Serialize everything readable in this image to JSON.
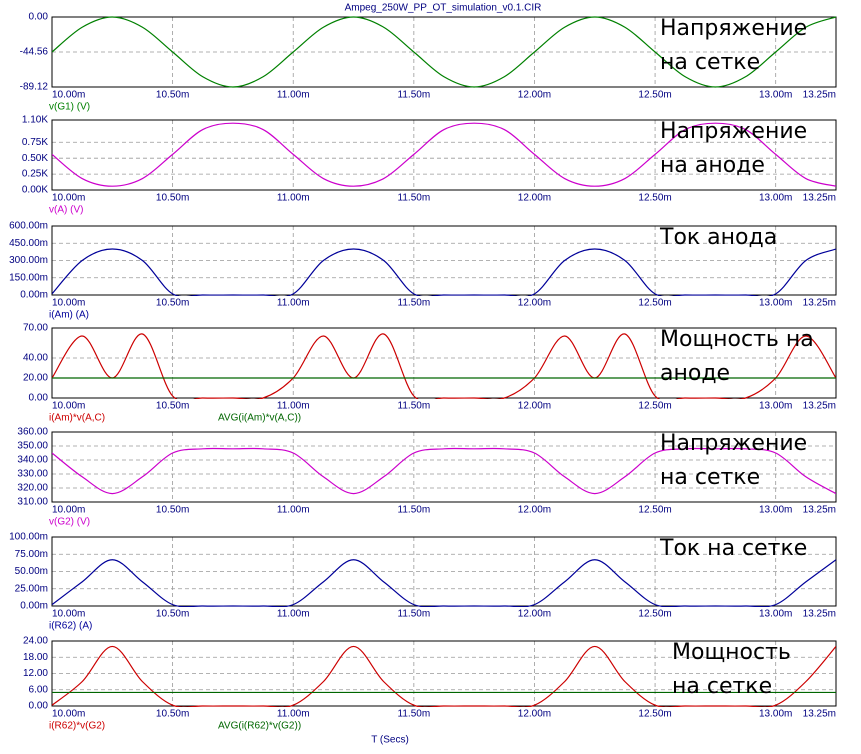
{
  "chart_data": [
    {
      "type": "line",
      "title": "Ampeg_250W_PP_OT_simulation_v0.1.CIR",
      "annotation": [
        "Напряжение",
        "на сетке"
      ],
      "x": [
        10,
        10.125,
        10.25,
        10.375,
        10.5,
        10.625,
        10.75,
        10.875,
        11,
        11.125,
        11.25,
        11.375,
        11.5,
        11.625,
        11.75,
        11.875,
        12,
        12.125,
        12.25,
        12.375,
        12.5,
        12.625,
        12.75,
        12.875,
        13,
        13.125,
        13.25
      ],
      "series": [
        {
          "name": "v(G1) (V)",
          "color": "#008000",
          "values": [
            -44.56,
            -13.05,
            0,
            -13.05,
            -44.56,
            -76.07,
            -89.12,
            -76.07,
            -44.56,
            -13.05,
            0,
            -13.05,
            -44.56,
            -76.07,
            -89.12,
            -76.07,
            -44.56,
            -13.05,
            0,
            -13.05,
            -44.56,
            -76.07,
            -89.12,
            -76.07,
            -44.56,
            -13.05,
            0
          ]
        }
      ],
      "xlim": [
        10,
        13.25
      ],
      "xticks": [
        {
          "value": 10,
          "label": "10.00m"
        },
        {
          "value": 10.5,
          "label": "10.50m"
        },
        {
          "value": 11,
          "label": "11.00m"
        },
        {
          "value": 11.5,
          "label": "11.50m"
        },
        {
          "value": 12,
          "label": "12.00m"
        },
        {
          "value": 12.5,
          "label": "12.50m"
        },
        {
          "value": 13,
          "label": "13.00m"
        },
        {
          "value": 13.25,
          "label": "13.25m"
        }
      ],
      "ylim": [
        -89.12,
        0
      ],
      "yticks": [
        {
          "value": 0,
          "label": "0.00"
        },
        -44.56,
        -89.12
      ],
      "grid": true
    },
    {
      "type": "line",
      "annotation": [
        "Напряжение",
        "на аноде"
      ],
      "x": [
        10,
        10.125,
        10.25,
        10.375,
        10.5,
        10.625,
        10.75,
        10.875,
        11,
        11.125,
        11.25,
        11.375,
        11.5,
        11.625,
        11.75,
        11.875,
        12,
        12.125,
        12.25,
        12.375,
        12.5,
        12.625,
        12.75,
        12.875,
        13,
        13.125,
        13.25
      ],
      "series": [
        {
          "name": "v(A) (V)",
          "color": "#cc00cc",
          "values": [
            560,
            180,
            60,
            180,
            560,
            950,
            1050,
            950,
            560,
            180,
            60,
            180,
            560,
            950,
            1050,
            950,
            560,
            180,
            60,
            180,
            560,
            950,
            1050,
            950,
            560,
            180,
            60
          ]
        }
      ],
      "xlim": [
        10,
        13.25
      ],
      "xticks": [
        {
          "value": 10,
          "label": "10.00m"
        },
        {
          "value": 10.5,
          "label": "10.50m"
        },
        {
          "value": 11,
          "label": "11.00m"
        },
        {
          "value": 11.5,
          "label": "11.50m"
        },
        {
          "value": 12,
          "label": "12.00m"
        },
        {
          "value": 12.5,
          "label": "12.50m"
        },
        {
          "value": 13,
          "label": "13.00m"
        },
        {
          "value": 13.25,
          "label": "13.25m"
        }
      ],
      "ylim": [
        0,
        1100
      ],
      "yticks": [
        {
          "value": 0,
          "label": "0.00K"
        },
        {
          "value": 250,
          "label": "0.25K"
        },
        {
          "value": 500,
          "label": "0.50K"
        },
        {
          "value": 750,
          "label": "0.75K"
        },
        {
          "value": 1100,
          "label": "1.10K"
        }
      ],
      "grid": true
    },
    {
      "type": "line",
      "annotation": [
        "Ток анода"
      ],
      "x": [
        10,
        10.125,
        10.25,
        10.375,
        10.5,
        10.625,
        10.75,
        10.875,
        11,
        11.125,
        11.25,
        11.375,
        11.5,
        11.625,
        11.75,
        11.875,
        12,
        12.125,
        12.25,
        12.375,
        12.5,
        12.625,
        12.75,
        12.875,
        13,
        13.125,
        13.25
      ],
      "series": [
        {
          "name": "i(Am) (A)",
          "color": "#000099",
          "values": [
            0.01,
            0.3,
            0.4,
            0.3,
            0.01,
            0,
            0,
            0,
            0.01,
            0.3,
            0.4,
            0.3,
            0.01,
            0,
            0,
            0,
            0.01,
            0.3,
            0.4,
            0.3,
            0.01,
            0,
            0,
            0,
            0.01,
            0.3,
            0.4
          ]
        }
      ],
      "xlim": [
        10,
        13.25
      ],
      "xticks": [
        {
          "value": 10,
          "label": "10.00m"
        },
        {
          "value": 10.5,
          "label": "10.50m"
        },
        {
          "value": 11,
          "label": "11.00m"
        },
        {
          "value": 11.5,
          "label": "11.50m"
        },
        {
          "value": 12,
          "label": "12.00m"
        },
        {
          "value": 12.5,
          "label": "12.50m"
        },
        {
          "value": 13,
          "label": "13.00m"
        },
        {
          "value": 13.25,
          "label": "13.25m"
        }
      ],
      "ylim": [
        0,
        0.6
      ],
      "yticks": [
        {
          "value": 0,
          "label": "0.00m"
        },
        {
          "value": 0.15,
          "label": "150.00m"
        },
        {
          "value": 0.3,
          "label": "300.00m"
        },
        {
          "value": 0.45,
          "label": "450.00m"
        },
        {
          "value": 0.6,
          "label": "600.00m"
        }
      ],
      "grid": true
    },
    {
      "type": "line",
      "annotation": [
        "Мощность на",
        "аноде"
      ],
      "x": [
        10,
        10.125,
        10.25,
        10.375,
        10.5,
        10.625,
        10.75,
        10.875,
        11,
        11.125,
        11.25,
        11.375,
        11.5,
        11.625,
        11.75,
        11.875,
        12,
        12.125,
        12.25,
        12.375,
        12.5,
        12.625,
        12.75,
        12.875,
        13,
        13.125,
        13.25
      ],
      "series": [
        {
          "name": "i(Am)*v(A,C)",
          "color": "#cc0000",
          "values": [
            20,
            62,
            20,
            64,
            2,
            0,
            0,
            0,
            20,
            62,
            20,
            64,
            2,
            0,
            0,
            0,
            20,
            62,
            20,
            64,
            2,
            0,
            0,
            0,
            20,
            62,
            20
          ]
        },
        {
          "name": "AVG(i(Am)*v(A,C))",
          "color": "#006600",
          "values": [
            20,
            20,
            20,
            20,
            20,
            20,
            20,
            20,
            20,
            20,
            20,
            20,
            20,
            20,
            20,
            20,
            20,
            20,
            20,
            20,
            20,
            20,
            20,
            20,
            20,
            20,
            20
          ]
        }
      ],
      "xlim": [
        10,
        13.25
      ],
      "xticks": [
        {
          "value": 10,
          "label": "10.00m"
        },
        {
          "value": 10.5,
          "label": "10.50m"
        },
        {
          "value": 11,
          "label": "11.00m"
        },
        {
          "value": 11.5,
          "label": "11.50m"
        },
        {
          "value": 12,
          "label": "12.00m"
        },
        {
          "value": 12.5,
          "label": "12.50m"
        },
        {
          "value": 13,
          "label": "13.00m"
        },
        {
          "value": 13.25,
          "label": "13.25m"
        }
      ],
      "ylim": [
        0,
        70
      ],
      "yticks": [
        {
          "value": 0,
          "label": "0.00"
        },
        {
          "value": 20,
          "label": "20.00"
        },
        {
          "value": 40,
          "label": "40.00"
        },
        {
          "value": 70,
          "label": "70.00"
        }
      ],
      "grid": true
    },
    {
      "type": "line",
      "annotation": [
        "Напряжение",
        "на сетке"
      ],
      "x": [
        10,
        10.125,
        10.25,
        10.375,
        10.5,
        10.625,
        10.75,
        10.875,
        11,
        11.125,
        11.25,
        11.375,
        11.5,
        11.625,
        11.75,
        11.875,
        12,
        12.125,
        12.25,
        12.375,
        12.5,
        12.625,
        12.75,
        12.875,
        13,
        13.125,
        13.25
      ],
      "series": [
        {
          "name": "v(G2) (V)",
          "color": "#cc00cc",
          "values": [
            345,
            328,
            316,
            328,
            345,
            348,
            348,
            348,
            345,
            328,
            316,
            328,
            345,
            348,
            348,
            348,
            345,
            328,
            316,
            328,
            345,
            348,
            348,
            348,
            345,
            328,
            316
          ]
        }
      ],
      "xlim": [
        10,
        13.25
      ],
      "xticks": [
        {
          "value": 10,
          "label": "10.00m"
        },
        {
          "value": 10.5,
          "label": "10.50m"
        },
        {
          "value": 11,
          "label": "11.00m"
        },
        {
          "value": 11.5,
          "label": "11.50m"
        },
        {
          "value": 12,
          "label": "12.00m"
        },
        {
          "value": 12.5,
          "label": "12.50m"
        },
        {
          "value": 13,
          "label": "13.00m"
        },
        {
          "value": 13.25,
          "label": "13.25m"
        }
      ],
      "ylim": [
        310,
        360
      ],
      "yticks": [
        {
          "value": 310,
          "label": "310.00"
        },
        {
          "value": 320,
          "label": "320.00"
        },
        {
          "value": 330,
          "label": "330.00"
        },
        {
          "value": 340,
          "label": "340.00"
        },
        {
          "value": 350,
          "label": "350.00"
        },
        {
          "value": 360,
          "label": "360.00"
        }
      ],
      "grid": true
    },
    {
      "type": "line",
      "annotation": [
        "Ток на сетке"
      ],
      "x": [
        10,
        10.125,
        10.25,
        10.375,
        10.5,
        10.625,
        10.75,
        10.875,
        11,
        11.125,
        11.25,
        11.375,
        11.5,
        11.625,
        11.75,
        11.875,
        12,
        12.125,
        12.25,
        12.375,
        12.5,
        12.625,
        12.75,
        12.875,
        13,
        13.125,
        13.25
      ],
      "series": [
        {
          "name": "i(R62) (A)",
          "color": "#000099",
          "values": [
            0.002,
            0.035,
            0.067,
            0.035,
            0.002,
            0,
            0,
            0,
            0.002,
            0.035,
            0.067,
            0.035,
            0.002,
            0,
            0,
            0,
            0.002,
            0.035,
            0.067,
            0.035,
            0.002,
            0,
            0,
            0,
            0.002,
            0.035,
            0.067
          ]
        }
      ],
      "xlim": [
        10,
        13.25
      ],
      "xticks": [
        {
          "value": 10,
          "label": "10.00m"
        },
        {
          "value": 10.5,
          "label": "10.50m"
        },
        {
          "value": 11,
          "label": "11.00m"
        },
        {
          "value": 11.5,
          "label": "11.50m"
        },
        {
          "value": 12,
          "label": "12.00m"
        },
        {
          "value": 12.5,
          "label": "12.50m"
        },
        {
          "value": 13,
          "label": "13.00m"
        },
        {
          "value": 13.25,
          "label": "13.25m"
        }
      ],
      "ylim": [
        0,
        0.1
      ],
      "yticks": [
        {
          "value": 0,
          "label": "0.00m"
        },
        {
          "value": 0.025,
          "label": "25.00m"
        },
        {
          "value": 0.05,
          "label": "50.00m"
        },
        {
          "value": 0.075,
          "label": "75.00m"
        },
        {
          "value": 0.1,
          "label": "100.00m"
        }
      ],
      "grid": true
    },
    {
      "type": "line",
      "annotation": [
        "Мощность",
        "на сетке"
      ],
      "xlabel": "T (Secs)",
      "x": [
        10,
        10.125,
        10.25,
        10.375,
        10.5,
        10.625,
        10.75,
        10.875,
        11,
        11.125,
        11.25,
        11.375,
        11.5,
        11.625,
        11.75,
        11.875,
        12,
        12.125,
        12.25,
        12.375,
        12.5,
        12.625,
        12.75,
        12.875,
        13,
        13.125,
        13.25
      ],
      "series": [
        {
          "name": "i(R62)*v(G2)",
          "color": "#cc0000",
          "values": [
            0.3,
            9,
            22,
            9,
            0.3,
            0,
            0,
            0,
            0.3,
            9,
            22,
            9,
            0.3,
            0,
            0,
            0,
            0.3,
            9,
            22,
            9,
            0.3,
            0,
            0,
            0,
            0.3,
            9,
            22
          ]
        },
        {
          "name": "AVG(i(R62)*v(G2))",
          "color": "#006600",
          "values": [
            5,
            5,
            5,
            5,
            5,
            5,
            5,
            5,
            5,
            5,
            5,
            5,
            5,
            5,
            5,
            5,
            5,
            5,
            5,
            5,
            5,
            5,
            5,
            5,
            5,
            5,
            5
          ]
        }
      ],
      "xlim": [
        10,
        13.25
      ],
      "xticks": [
        {
          "value": 10,
          "label": "10.00m"
        },
        {
          "value": 10.5,
          "label": "10.50m"
        },
        {
          "value": 11,
          "label": "11.00m"
        },
        {
          "value": 11.5,
          "label": "11.50m"
        },
        {
          "value": 12,
          "label": "12.00m"
        },
        {
          "value": 12.5,
          "label": "12.50m"
        },
        {
          "value": 13,
          "label": "13.00m"
        },
        {
          "value": 13.25,
          "label": "13.25m"
        }
      ],
      "ylim": [
        0,
        24
      ],
      "yticks": [
        {
          "value": 0,
          "label": "0.00"
        },
        {
          "value": 6,
          "label": "6.00"
        },
        {
          "value": 12,
          "label": "12.00"
        },
        {
          "value": 18,
          "label": "18.00"
        },
        {
          "value": 24,
          "label": "24.00"
        }
      ],
      "grid": true
    }
  ]
}
